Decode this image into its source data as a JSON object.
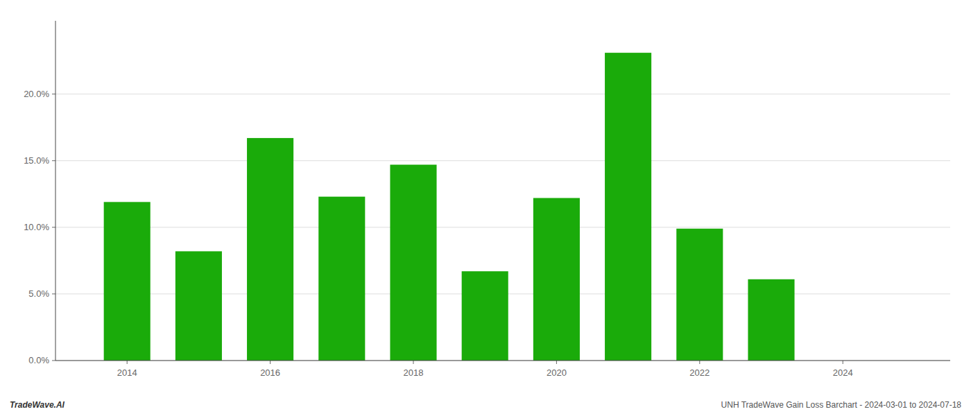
{
  "chart_data": {
    "type": "bar",
    "x": [
      2014,
      2015,
      2016,
      2017,
      2018,
      2019,
      2020,
      2021,
      2022,
      2023
    ],
    "values": [
      0.119,
      0.082,
      0.167,
      0.123,
      0.147,
      0.067,
      0.122,
      0.231,
      0.099,
      0.061
    ],
    "color": "#1aab0a",
    "xlim": [
      2013.0,
      2025.5
    ],
    "xticks": [
      2014,
      2016,
      2018,
      2020,
      2022,
      2024
    ],
    "ylim": [
      0,
      0.255
    ],
    "yticks": [
      {
        "value": 0.0,
        "label": "0.0%"
      },
      {
        "value": 0.05,
        "label": "5.0%"
      },
      {
        "value": 0.1,
        "label": "10.0%"
      },
      {
        "value": 0.15,
        "label": "15.0%"
      },
      {
        "value": 0.2,
        "label": "20.0%"
      }
    ],
    "grid": true,
    "annotations": [
      "TradeWave.AI",
      "UNH TradeWave Gain Loss Barchart - 2024-03-01 to 2024-07-18"
    ]
  }
}
